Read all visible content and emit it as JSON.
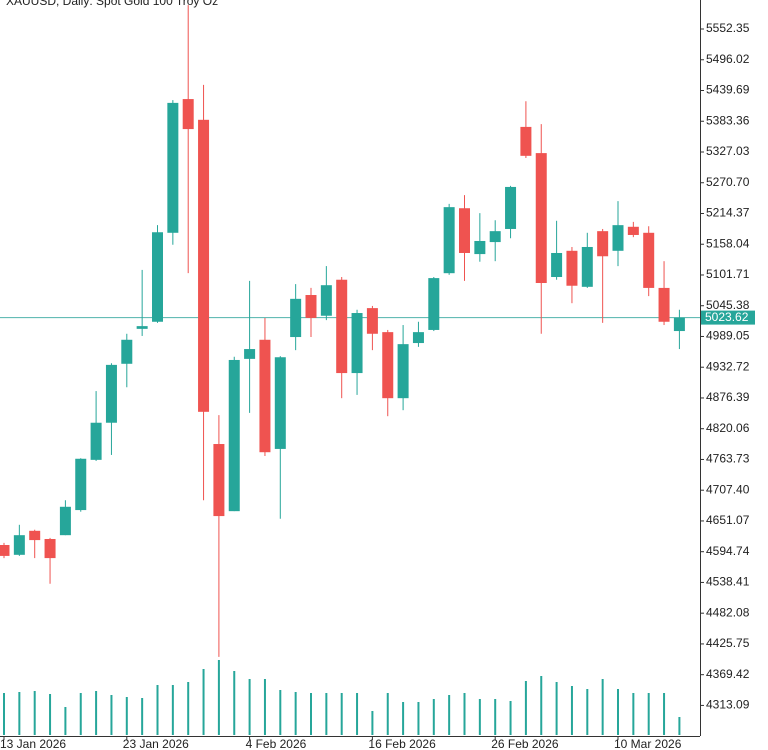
{
  "chart_data": {
    "type": "candlestick",
    "title": "XAUUSD, Daily:  Spot Gold 100 Troy Oz",
    "categories": [
      "13 Jan 2026",
      null,
      null,
      null,
      null,
      null,
      null,
      null,
      "23 Jan 2026",
      null,
      null,
      null,
      null,
      null,
      null,
      null,
      "4 Feb 2026",
      null,
      null,
      null,
      null,
      null,
      null,
      null,
      "16 Feb 2026",
      null,
      null,
      null,
      null,
      null,
      null,
      null,
      "26 Feb 2026",
      null,
      null,
      null,
      null,
      null,
      null,
      null,
      "10 Mar 2026",
      null,
      null,
      null,
      null
    ],
    "open": [
      4607,
      4589,
      4633,
      4618,
      4625,
      4671,
      4763,
      4831,
      4939,
      5003,
      5016,
      5179,
      5424,
      5386,
      4792,
      4669,
      4948,
      4983,
      4783,
      4988,
      5065,
      5027,
      5093,
      4922,
      5041,
      4997,
      4876,
      4977,
      5001,
      5105,
      5224,
      5140,
      5162,
      5186,
      5373,
      5325,
      5098,
      5146,
      5080,
      5182,
      5146,
      5190,
      5179,
      5078,
      4999
    ],
    "high": [
      4611,
      4644,
      4635,
      4620,
      4689,
      4766,
      4889,
      4940,
      4994,
      5111,
      5193,
      5422,
      5596,
      5450,
      4845,
      4952,
      5091,
      5023,
      4953,
      5085,
      5078,
      5118,
      5098,
      5038,
      5045,
      5001,
      5010,
      5016,
      5098,
      5232,
      5248,
      5215,
      5202,
      5265,
      5420,
      5378,
      5201,
      5153,
      5179,
      5186,
      5237,
      5199,
      5191,
      5127,
      5038
    ],
    "low": [
      4583,
      4587,
      4583,
      4536,
      4625,
      4668,
      4761,
      4772,
      4896,
      4990,
      5014,
      5157,
      5105,
      4689,
      4402,
      4669,
      4849,
      4770,
      4655,
      4964,
      4988,
      5019,
      4876,
      4882,
      4964,
      4843,
      4854,
      4970,
      4999,
      5102,
      5091,
      5126,
      5127,
      5169,
      5316,
      4994,
      5093,
      5050,
      5078,
      5014,
      5118,
      5171,
      5063,
      5010,
      4966
    ],
    "close": [
      4587,
      4625,
      4616,
      4583,
      4677,
      4765,
      4831,
      4937,
      4983,
      5008,
      5180,
      5417,
      5369,
      4851,
      4660,
      4946,
      4966,
      4777,
      4951,
      5058,
      5023,
      5083,
      4922,
      5032,
      4994,
      4876,
      4975,
      4997,
      5096,
      5226,
      5142,
      5164,
      5182,
      5263,
      5320,
      5087,
      5142,
      5082,
      5153,
      5136,
      5193,
      5175,
      5078,
      5016,
      5023.62
    ],
    "volumes": [
      42,
      43,
      44,
      41,
      28,
      42,
      44,
      40,
      38,
      37,
      50,
      50,
      53,
      66,
      75,
      64,
      56,
      56,
      45,
      43,
      42,
      42,
      42,
      42,
      24,
      42,
      33,
      33,
      36,
      40,
      42,
      36,
      36,
      34,
      54,
      59,
      53,
      49,
      46,
      56,
      46,
      42,
      42,
      42,
      18
    ],
    "up_color": "#26a69a",
    "down_color": "#ef5350",
    "volume_color": "#26a69a",
    "current_price": 5023.62,
    "ylim": [
      4258.9,
      5605.5
    ],
    "yticks": [
      5552.35,
      5496.02,
      5439.69,
      5383.36,
      5327.03,
      {
        "value": 5270.7,
        "label": "5270.70"
      },
      5214.37,
      5158.04,
      5101.71,
      5045.38,
      4989.05,
      4932.72,
      4876.39,
      4820.06,
      4763.73,
      {
        "value": 4707.4,
        "label": "4707.40"
      },
      4651.07,
      4594.74,
      4538.41,
      4482.08,
      4425.75,
      4369.42,
      4313.09
    ]
  }
}
